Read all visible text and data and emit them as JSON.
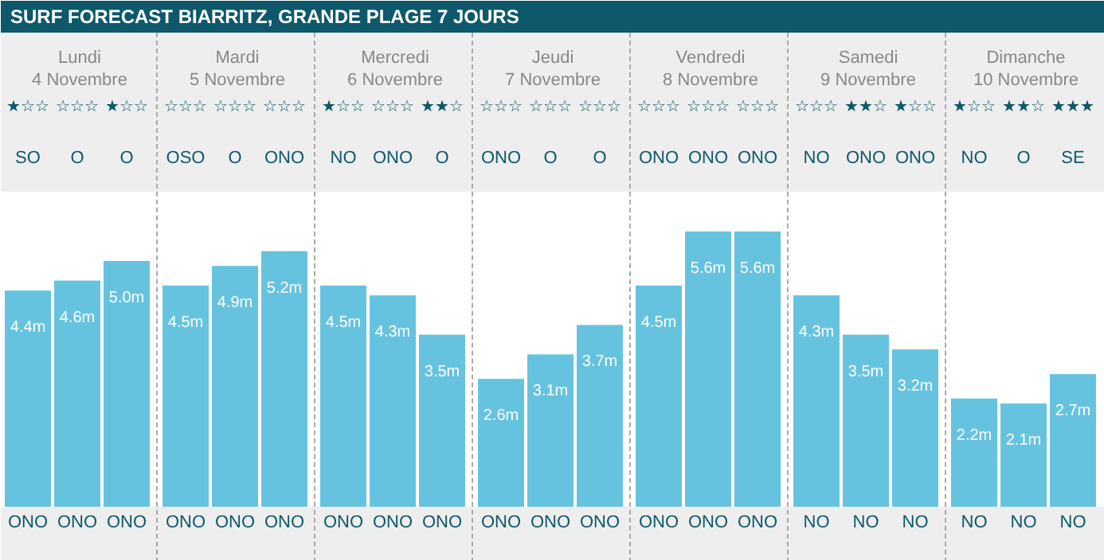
{
  "chart_data": {
    "type": "bar",
    "title": "SURF FORECAST BIARRITZ, GRANDE PLAGE 7 JOURS",
    "categories": [
      "ONO",
      "ONO",
      "ONO",
      "ONO",
      "ONO",
      "ONO",
      "ONO",
      "ONO",
      "ONO",
      "ONO",
      "ONO",
      "ONO",
      "ONO",
      "ONO",
      "ONO",
      "NO",
      "NO",
      "NO",
      "NO",
      "NO",
      "NO"
    ],
    "values": [
      4.4,
      4.6,
      5.0,
      4.5,
      4.9,
      5.2,
      4.5,
      4.3,
      3.5,
      2.6,
      3.1,
      3.7,
      4.5,
      5.6,
      5.6,
      4.3,
      3.5,
      3.2,
      2.2,
      2.1,
      2.7
    ],
    "value_labels": [
      "4.4m",
      "4.6m",
      "5.0m",
      "4.5m",
      "4.9m",
      "5.2m",
      "4.5m",
      "4.3m",
      "3.5m",
      "2.6m",
      "3.1m",
      "3.7m",
      "4.5m",
      "5.6m",
      "5.6m",
      "4.3m",
      "3.5m",
      "3.2m",
      "2.2m",
      "2.1m",
      "2.7m"
    ],
    "color": "#66c3df",
    "grid": false,
    "annotations": [
      "Lundi",
      "4 Novembre",
      "Mardi",
      "5 Novembre",
      "Mercredi",
      "6 Novembre",
      "Jeudi",
      "7 Novembre",
      "Vendredi",
      "8 Novembre",
      "Samedi",
      "9 Novembre",
      "Dimanche",
      "10 Novembre",
      "★☆☆",
      "☆☆☆",
      "★☆☆",
      "☆☆☆",
      "☆☆☆",
      "☆☆☆",
      "★☆☆",
      "☆☆☆",
      "★★☆",
      "☆☆☆",
      "☆☆☆",
      "☆☆☆",
      "☆☆☆",
      "☆☆☆",
      "☆☆☆",
      "☆☆☆",
      "★★☆",
      "★☆☆",
      "★☆☆",
      "★★☆",
      "★★★",
      "SO",
      "O",
      "O",
      "OSO",
      "O",
      "ONO",
      "NO",
      "ONO",
      "O",
      "ONO",
      "O",
      "O",
      "ONO",
      "ONO",
      "ONO",
      "NO",
      "ONO",
      "ONO",
      "NO",
      "O",
      "SE"
    ]
  }
}
